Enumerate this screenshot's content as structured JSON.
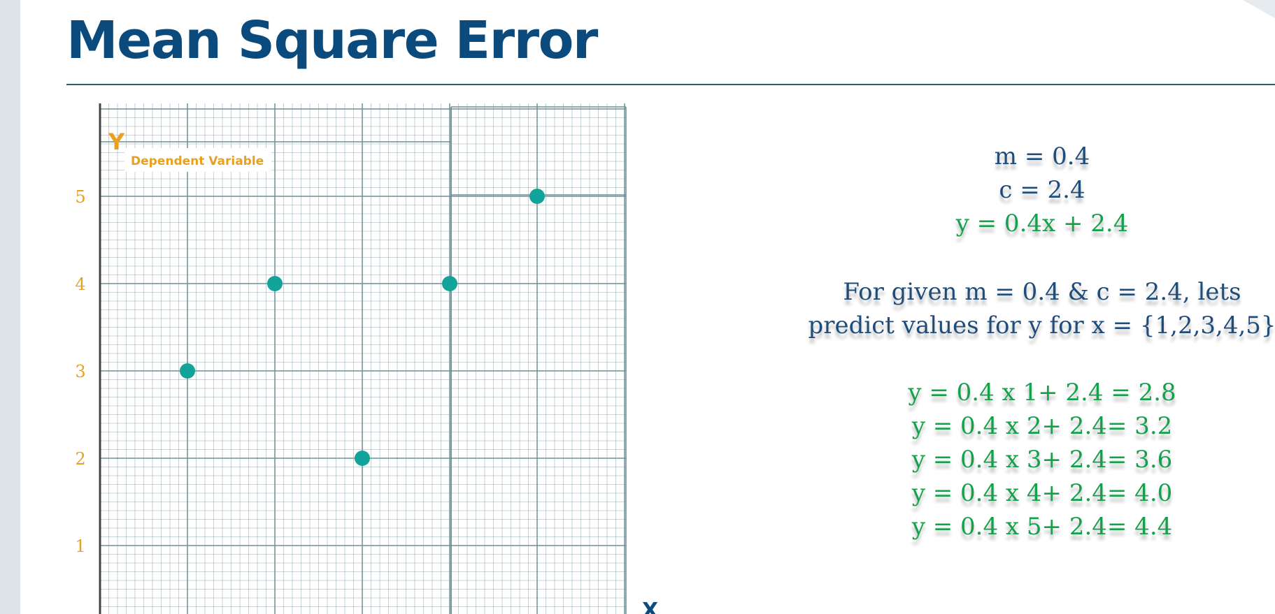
{
  "slide": {
    "title": "Mean Square Error"
  },
  "chart_data": {
    "type": "scatter",
    "title": "",
    "ylabel": "Y",
    "ylabel_subtitle": "Dependent Variable",
    "xlabel": "X",
    "y_ticks": [
      "1",
      "2",
      "3",
      "4",
      "5"
    ],
    "xlim": [
      0,
      6
    ],
    "ylim": [
      0,
      6
    ],
    "grid": true,
    "points": [
      {
        "x": 1,
        "y": 3
      },
      {
        "x": 2,
        "y": 4
      },
      {
        "x": 3,
        "y": 2
      },
      {
        "x": 4,
        "y": 4
      },
      {
        "x": 5,
        "y": 5
      }
    ],
    "colors": {
      "point": "#12a39a",
      "tick_label": "#e8a020",
      "grid": "#6f8f94",
      "axis": "#444444"
    }
  },
  "equations": {
    "params": [
      "m = 0.4",
      "c = 2.4"
    ],
    "line_equation": "y = 0.4x + 2.4",
    "instruction": [
      "For given m = 0.4 & c = 2.4, lets",
      "predict values for y for x = {1,2,3,4,5}"
    ],
    "predictions": [
      "y = 0.4 x 1+ 2.4 = 2.8",
      "y = 0.4 x 2+ 2.4= 3.2",
      "y = 0.4 x 3+ 2.4= 3.6",
      "y = 0.4 x 4+ 2.4= 4.0",
      "y = 0.4 x 5+ 2.4= 4.4"
    ]
  }
}
